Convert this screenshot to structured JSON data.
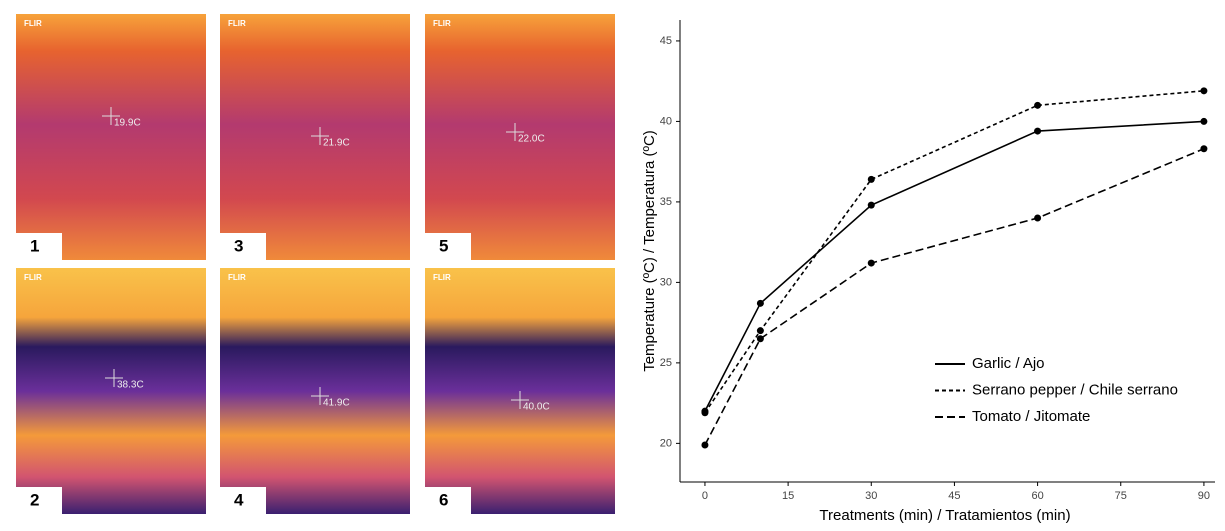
{
  "thermal_images": {
    "logo": "FLIR",
    "panels": [
      {
        "number": "1",
        "reading": "19.9C"
      },
      {
        "number": "3",
        "reading": "21.9C"
      },
      {
        "number": "5",
        "reading": "22.0C"
      },
      {
        "number": "2",
        "reading": "38.3C"
      },
      {
        "number": "4",
        "reading": "41.9C"
      },
      {
        "number": "6",
        "reading": "40.0C"
      }
    ]
  },
  "chart_data": {
    "type": "line",
    "x_label": "Treatments (min) / Tratamientos (min)",
    "y_label": "Temperature (ºC) / Temperatura (ºC)",
    "x": [
      0,
      10,
      30,
      60,
      90
    ],
    "xlim": [
      -4.5,
      92
    ],
    "xticks": [
      0,
      15,
      30,
      45,
      60,
      75,
      90
    ],
    "ylim": [
      17.6,
      46.3
    ],
    "yticks": [
      20,
      25,
      30,
      35,
      40,
      45
    ],
    "grid": false,
    "legend": "lower right",
    "series": [
      {
        "name": "Garlic / Ajo",
        "color": "#000000",
        "line_style": "solid",
        "values": [
          22.0,
          28.7,
          34.8,
          39.4,
          40.0
        ]
      },
      {
        "name": "Serrano pepper / Chile serrano",
        "color": "#000000",
        "line_style": "dotted",
        "values": [
          21.9,
          27.0,
          36.4,
          41.0,
          41.9
        ]
      },
      {
        "name": "Tomato / Jitomate",
        "color": "#000000",
        "line_style": "dashed",
        "values": [
          19.9,
          26.5,
          31.2,
          34.0,
          38.3
        ]
      }
    ]
  }
}
